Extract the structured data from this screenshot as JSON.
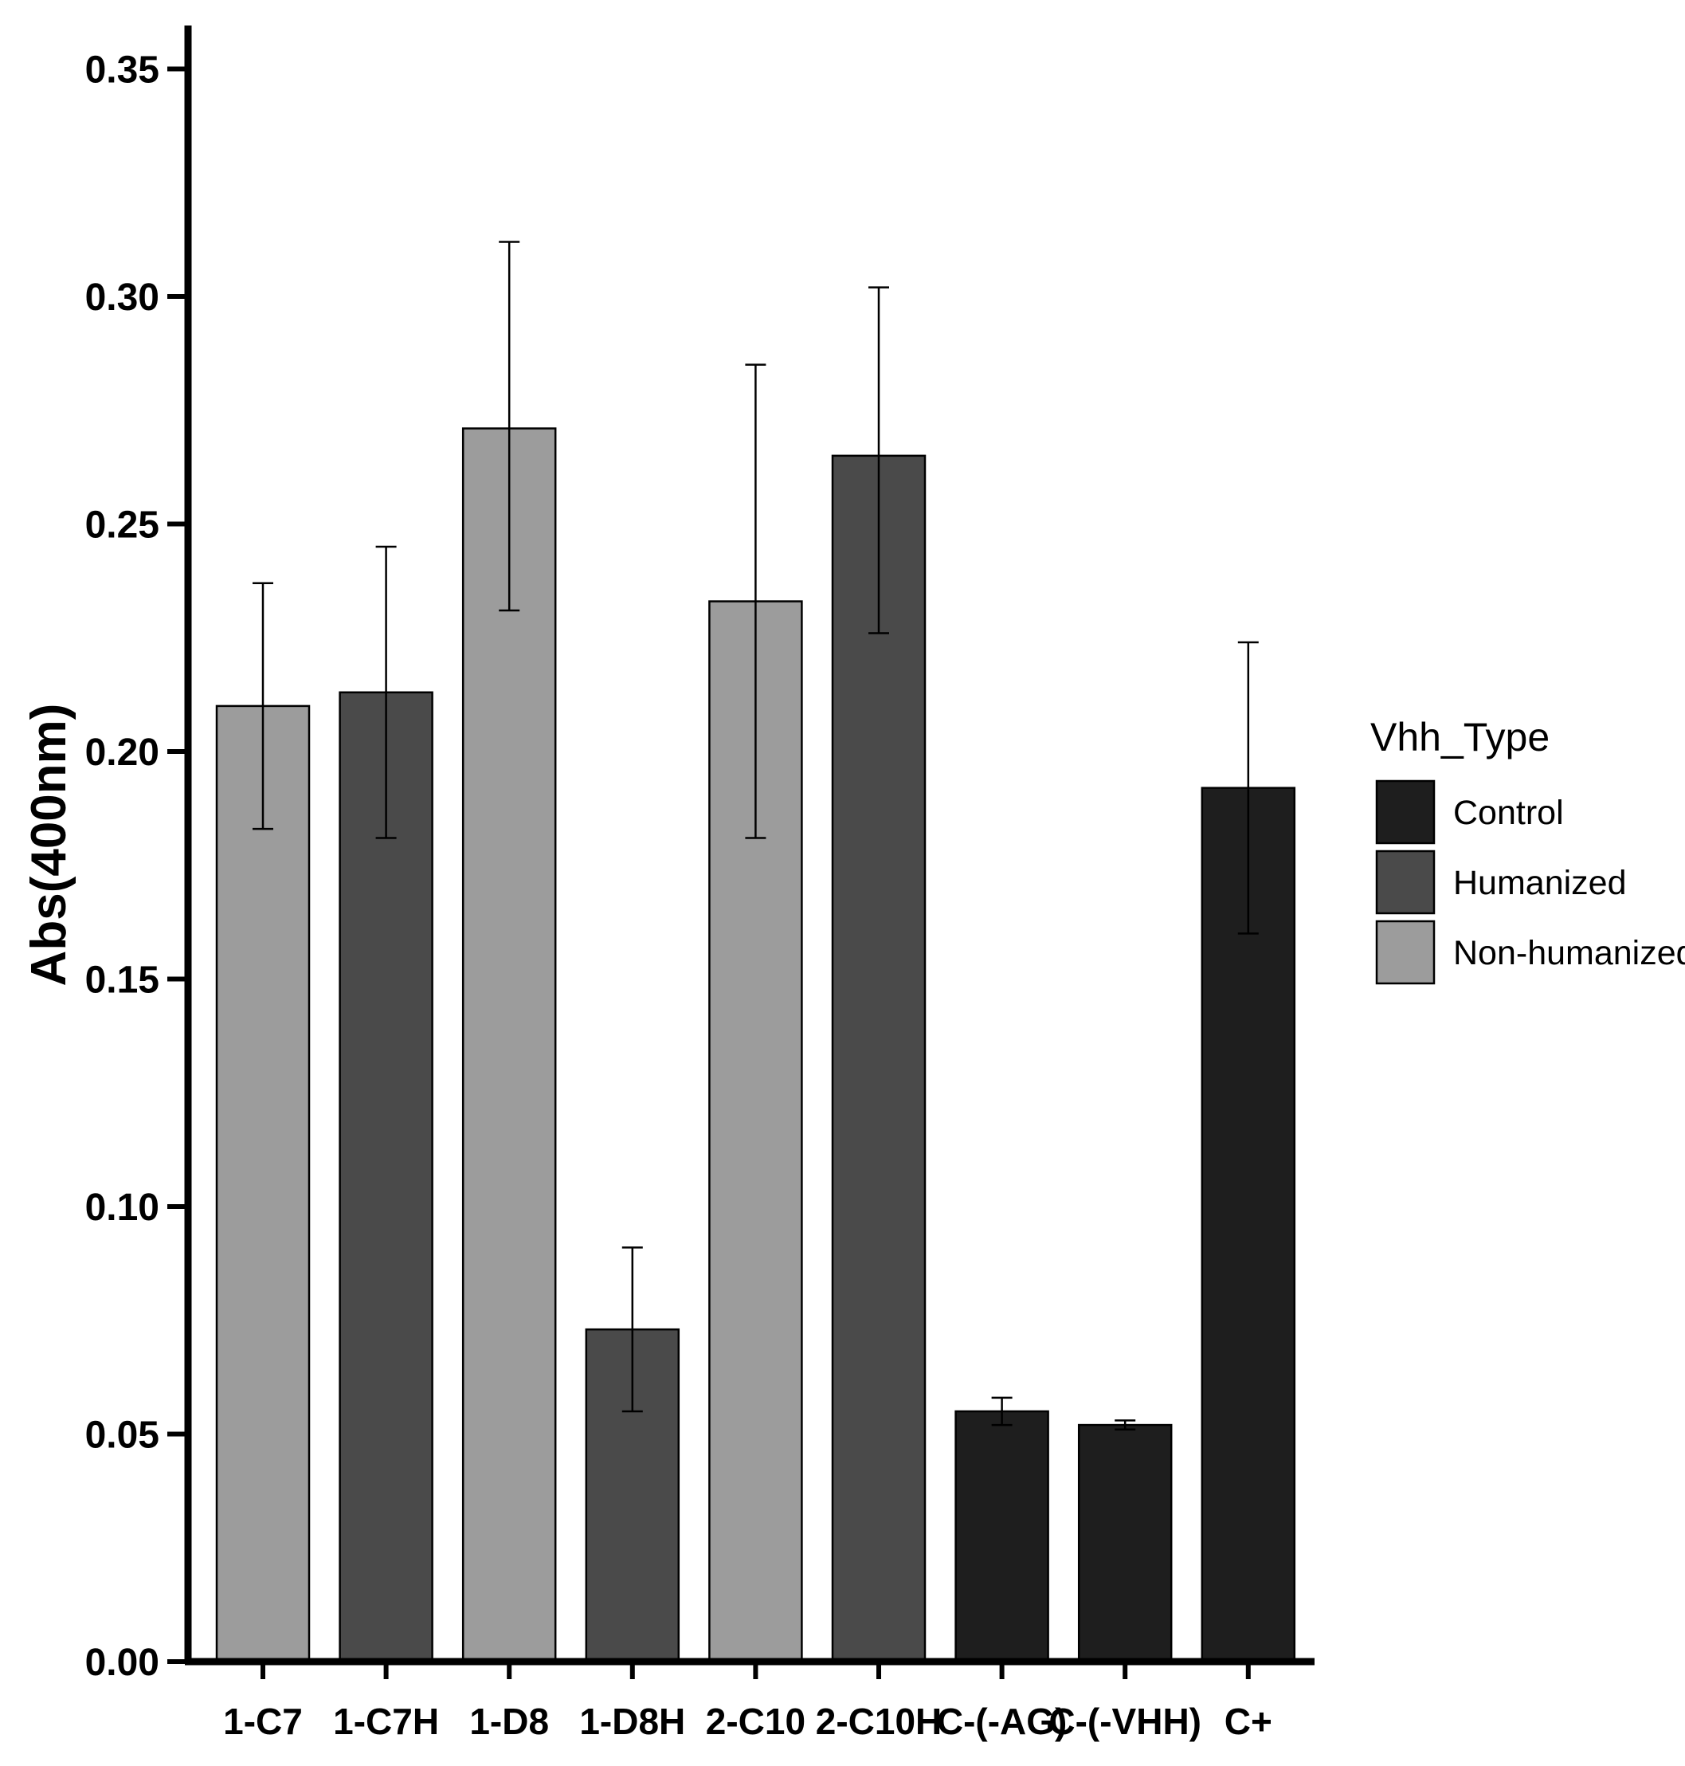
{
  "chart_data": {
    "type": "bar",
    "title": "",
    "xlabel": "",
    "ylabel": "Abs(400nm)",
    "ylim": [
      0,
      0.36
    ],
    "yticks": [
      0.0,
      0.05,
      0.1,
      0.15,
      0.2,
      0.25,
      0.3,
      0.35
    ],
    "ytick_labels": [
      "0.00",
      "0.05",
      "0.10",
      "0.15",
      "0.20",
      "0.25",
      "0.30",
      "0.35"
    ],
    "grid": false,
    "categories": [
      "1-C7",
      "1-C7H",
      "1-D8",
      "1-D8H",
      "2-C10",
      "2-C10H",
      "C-(-AG)",
      "C-(-VHH)",
      "C+"
    ],
    "values": [
      0.21,
      0.213,
      0.271,
      0.073,
      0.233,
      0.265,
      0.055,
      0.052,
      0.192
    ],
    "error_low": [
      0.183,
      0.181,
      0.231,
      0.055,
      0.181,
      0.226,
      0.052,
      0.051,
      0.16
    ],
    "error_high": [
      0.237,
      0.245,
      0.312,
      0.091,
      0.285,
      0.302,
      0.058,
      0.053,
      0.224
    ],
    "groups": [
      "Non-humanized",
      "Humanized",
      "Non-humanized",
      "Humanized",
      "Non-humanized",
      "Humanized",
      "Control",
      "Control",
      "Control"
    ],
    "legend": {
      "title": "Vhh_Type",
      "position": "right",
      "entries": [
        {
          "label": "Control",
          "color": "#1e1e1e"
        },
        {
          "label": "Humanized",
          "color": "#4a4a4a"
        },
        {
          "label": "Non-humanized",
          "color": "#9c9c9c"
        }
      ]
    }
  }
}
